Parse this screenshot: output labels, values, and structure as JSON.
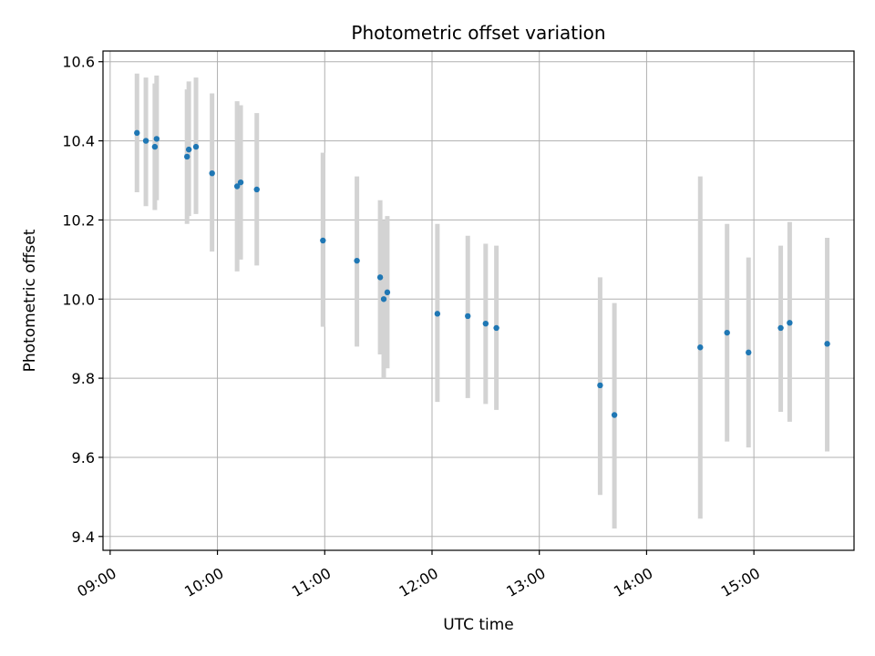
{
  "chart_data": {
    "type": "scatter",
    "title": "Photometric offset variation",
    "xlabel": "UTC time",
    "ylabel": "Photometric offset",
    "xlim": [
      "08:56",
      "15:56"
    ],
    "ylim": [
      9.365,
      10.627
    ],
    "grid": true,
    "x_ticks": [
      "09:00",
      "10:00",
      "11:00",
      "12:00",
      "13:00",
      "14:00",
      "15:00"
    ],
    "y_ticks": [
      9.4,
      9.6,
      9.8,
      10.0,
      10.2,
      10.4,
      10.6
    ],
    "colors": {
      "marker": "#1f77b4",
      "errorbar": "#d3d3d3",
      "grid": "#b0b0b0"
    },
    "points": [
      {
        "x": "09:15",
        "y": 10.42,
        "yerr_low": 10.27,
        "yerr_high": 10.57
      },
      {
        "x": "09:20",
        "y": 10.4,
        "yerr_low": 10.235,
        "yerr_high": 10.56
      },
      {
        "x": "09:25",
        "y": 10.385,
        "yerr_low": 10.225,
        "yerr_high": 10.545
      },
      {
        "x": "09:26",
        "y": 10.405,
        "yerr_low": 10.25,
        "yerr_high": 10.565
      },
      {
        "x": "09:43",
        "y": 10.36,
        "yerr_low": 10.19,
        "yerr_high": 10.53
      },
      {
        "x": "09:44",
        "y": 10.378,
        "yerr_low": 10.21,
        "yerr_high": 10.55
      },
      {
        "x": "09:48",
        "y": 10.385,
        "yerr_low": 10.215,
        "yerr_high": 10.56
      },
      {
        "x": "09:57",
        "y": 10.318,
        "yerr_low": 10.12,
        "yerr_high": 10.52
      },
      {
        "x": "10:11",
        "y": 10.285,
        "yerr_low": 10.07,
        "yerr_high": 10.5
      },
      {
        "x": "10:13",
        "y": 10.295,
        "yerr_low": 10.1,
        "yerr_high": 10.49
      },
      {
        "x": "10:22",
        "y": 10.277,
        "yerr_low": 10.085,
        "yerr_high": 10.47
      },
      {
        "x": "10:59",
        "y": 10.148,
        "yerr_low": 9.93,
        "yerr_high": 10.37
      },
      {
        "x": "11:18",
        "y": 10.097,
        "yerr_low": 9.88,
        "yerr_high": 10.31
      },
      {
        "x": "11:31",
        "y": 10.055,
        "yerr_low": 9.86,
        "yerr_high": 10.25
      },
      {
        "x": "11:33",
        "y": 10.0,
        "yerr_low": 9.8,
        "yerr_high": 10.2
      },
      {
        "x": "11:35",
        "y": 10.017,
        "yerr_low": 9.825,
        "yerr_high": 10.21
      },
      {
        "x": "12:03",
        "y": 9.963,
        "yerr_low": 9.74,
        "yerr_high": 10.19
      },
      {
        "x": "12:20",
        "y": 9.957,
        "yerr_low": 9.75,
        "yerr_high": 10.16
      },
      {
        "x": "12:30",
        "y": 9.938,
        "yerr_low": 9.735,
        "yerr_high": 10.14
      },
      {
        "x": "12:36",
        "y": 9.927,
        "yerr_low": 9.72,
        "yerr_high": 10.135
      },
      {
        "x": "13:34",
        "y": 9.782,
        "yerr_low": 9.505,
        "yerr_high": 10.055
      },
      {
        "x": "13:42",
        "y": 9.707,
        "yerr_low": 9.42,
        "yerr_high": 9.99
      },
      {
        "x": "14:30",
        "y": 9.878,
        "yerr_low": 9.445,
        "yerr_high": 10.31
      },
      {
        "x": "14:45",
        "y": 9.915,
        "yerr_low": 9.64,
        "yerr_high": 10.19
      },
      {
        "x": "14:57",
        "y": 9.865,
        "yerr_low": 9.625,
        "yerr_high": 10.105
      },
      {
        "x": "15:15",
        "y": 9.927,
        "yerr_low": 9.715,
        "yerr_high": 10.135
      },
      {
        "x": "15:20",
        "y": 9.94,
        "yerr_low": 9.69,
        "yerr_high": 10.195
      },
      {
        "x": "15:41",
        "y": 9.887,
        "yerr_low": 9.615,
        "yerr_high": 10.155
      }
    ]
  }
}
